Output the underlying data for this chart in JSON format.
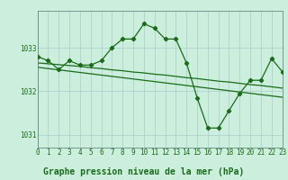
{
  "background_color": "#cceedd",
  "grid_color": "#aacccc",
  "line_color": "#1a6b1a",
  "title": "Graphe pression niveau de la mer (hPa)",
  "xlim": [
    0,
    23
  ],
  "ylim": [
    1030.7,
    1033.85
  ],
  "yticks": [
    1031,
    1032,
    1033
  ],
  "xticks": [
    0,
    1,
    2,
    3,
    4,
    5,
    6,
    7,
    8,
    9,
    10,
    11,
    12,
    13,
    14,
    15,
    16,
    17,
    18,
    19,
    20,
    21,
    22,
    23
  ],
  "main_line": [
    1032.8,
    1032.7,
    1032.5,
    1032.7,
    1032.6,
    1032.6,
    1032.7,
    1033.0,
    1033.2,
    1033.2,
    1033.55,
    1033.45,
    1033.2,
    1033.2,
    1032.65,
    1031.85,
    1031.15,
    1031.15,
    1031.55,
    1031.95,
    1032.25,
    1032.25,
    1032.75,
    1032.45
  ],
  "smooth_line1": [
    1032.65,
    1032.63,
    1032.61,
    1032.59,
    1032.57,
    1032.54,
    1032.52,
    1032.49,
    1032.47,
    1032.44,
    1032.42,
    1032.39,
    1032.37,
    1032.34,
    1032.31,
    1032.29,
    1032.26,
    1032.23,
    1032.21,
    1032.18,
    1032.15,
    1032.13,
    1032.1,
    1032.07
  ],
  "smooth_line2": [
    1032.55,
    1032.52,
    1032.49,
    1032.46,
    1032.43,
    1032.4,
    1032.37,
    1032.34,
    1032.31,
    1032.28,
    1032.25,
    1032.22,
    1032.19,
    1032.16,
    1032.13,
    1032.1,
    1032.07,
    1032.04,
    1032.01,
    1031.98,
    1031.95,
    1031.92,
    1031.89,
    1031.86
  ],
  "title_fontsize": 7,
  "tick_fontsize": 5.5,
  "marker": "D",
  "markersize": 2.2,
  "linewidth": 0.9
}
